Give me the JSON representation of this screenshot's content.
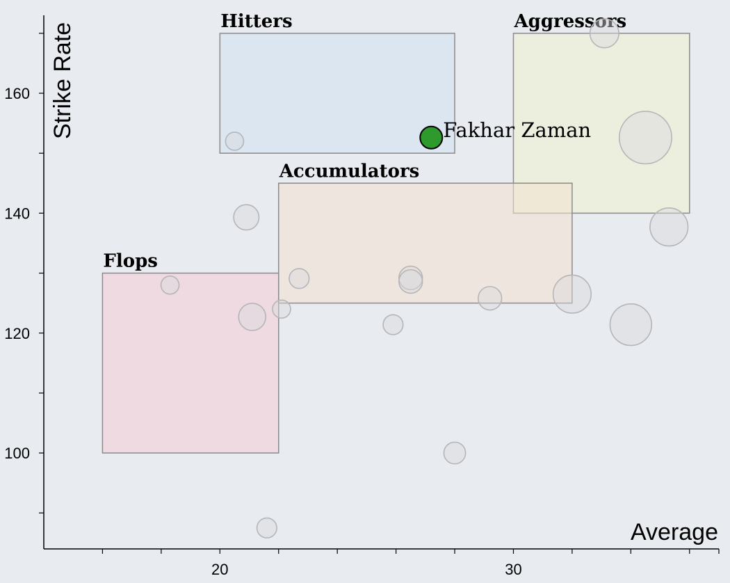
{
  "chart_data": {
    "type": "scatter",
    "title": "",
    "xlabel": "Average",
    "ylabel": "Strike Rate",
    "xlim": [
      14,
      37
    ],
    "ylim": [
      84,
      173
    ],
    "x_ticks": [
      20,
      30
    ],
    "y_ticks": [
      100,
      120,
      140,
      160
    ],
    "zones": [
      {
        "name": "Hitters",
        "x": [
          20,
          28
        ],
        "y": [
          150,
          170
        ],
        "color": "#cfe2f3"
      },
      {
        "name": "Aggressors",
        "x": [
          30,
          36
        ],
        "y": [
          140,
          170
        ],
        "color": "#f1f3d0"
      },
      {
        "name": "Accumulators",
        "x": [
          22,
          32
        ],
        "y": [
          125,
          145
        ],
        "color": "#f2e2d0"
      },
      {
        "name": "Flops",
        "x": [
          16,
          22
        ],
        "y": [
          100,
          130
        ],
        "color": "#f2ccd4"
      }
    ],
    "points": [
      {
        "x": 20.5,
        "y": 152,
        "size": 1
      },
      {
        "x": 20.9,
        "y": 139.3,
        "size": 1.4
      },
      {
        "x": 18.3,
        "y": 128,
        "size": 1
      },
      {
        "x": 21.1,
        "y": 122.7,
        "size": 1.5
      },
      {
        "x": 22.1,
        "y": 124,
        "size": 1
      },
      {
        "x": 22.7,
        "y": 129.1,
        "size": 1.1
      },
      {
        "x": 25.9,
        "y": 121.4,
        "size": 1.1
      },
      {
        "x": 26.5,
        "y": 129.2,
        "size": 1.3
      },
      {
        "x": 26.5,
        "y": 128.6,
        "size": 1.3
      },
      {
        "x": 29.2,
        "y": 125.8,
        "size": 1.3
      },
      {
        "x": 32.0,
        "y": 126.5,
        "size": 2.1
      },
      {
        "x": 34.0,
        "y": 121.4,
        "size": 2.3
      },
      {
        "x": 34.5,
        "y": 152.6,
        "size": 2.9
      },
      {
        "x": 35.3,
        "y": 137.7,
        "size": 2.1
      },
      {
        "x": 33.1,
        "y": 170,
        "size": 1.6
      },
      {
        "x": 28.0,
        "y": 100,
        "size": 1.2
      },
      {
        "x": 21.6,
        "y": 87.5,
        "size": 1.1
      }
    ],
    "highlight": {
      "name": "Fakhar Zaman",
      "x": 27.2,
      "y": 152.6,
      "color": "#2e9a2e"
    }
  }
}
